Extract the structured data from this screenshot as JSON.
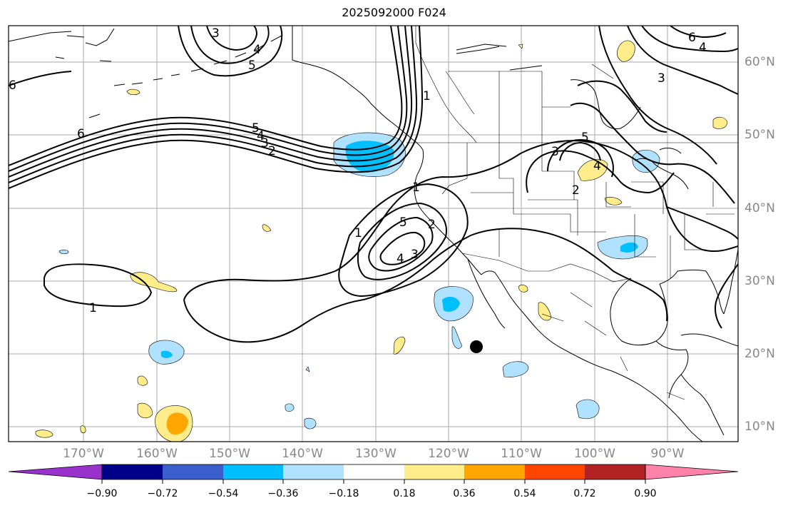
{
  "title": "2025092000 F024",
  "lon_labels": [
    "170°W",
    "160°W",
    "150°W",
    "140°W",
    "130°W",
    "120°W",
    "110°W",
    "100°W",
    "90°W"
  ],
  "lat_labels": [
    "60°N",
    "50°N",
    "40°N",
    "30°N",
    "20°N",
    "10°N"
  ],
  "colorbar": {
    "tick_labels": [
      "−0.90",
      "−0.72",
      "−0.54",
      "−0.36",
      "−0.18",
      "0.18",
      "0.36",
      "0.54",
      "0.72",
      "0.90"
    ],
    "colors": [
      "#9932cc",
      "#00008b",
      "#3a5fcd",
      "#00bfff",
      "#b0e2ff",
      "#ffffff",
      "#ffec8b",
      "#ffa500",
      "#ff4500",
      "#b22222",
      "#ff82ab"
    ]
  },
  "contour_labels": [
    "1",
    "1",
    "1",
    "2",
    "3",
    "4",
    "5",
    "6",
    "3",
    "4",
    "5",
    "6",
    "1",
    "2",
    "3",
    "4",
    "5",
    "3",
    "4",
    "5",
    "2",
    "3",
    "4",
    "6"
  ],
  "marker": {
    "name": "black-dot",
    "lon": -116,
    "lat": 21
  }
}
